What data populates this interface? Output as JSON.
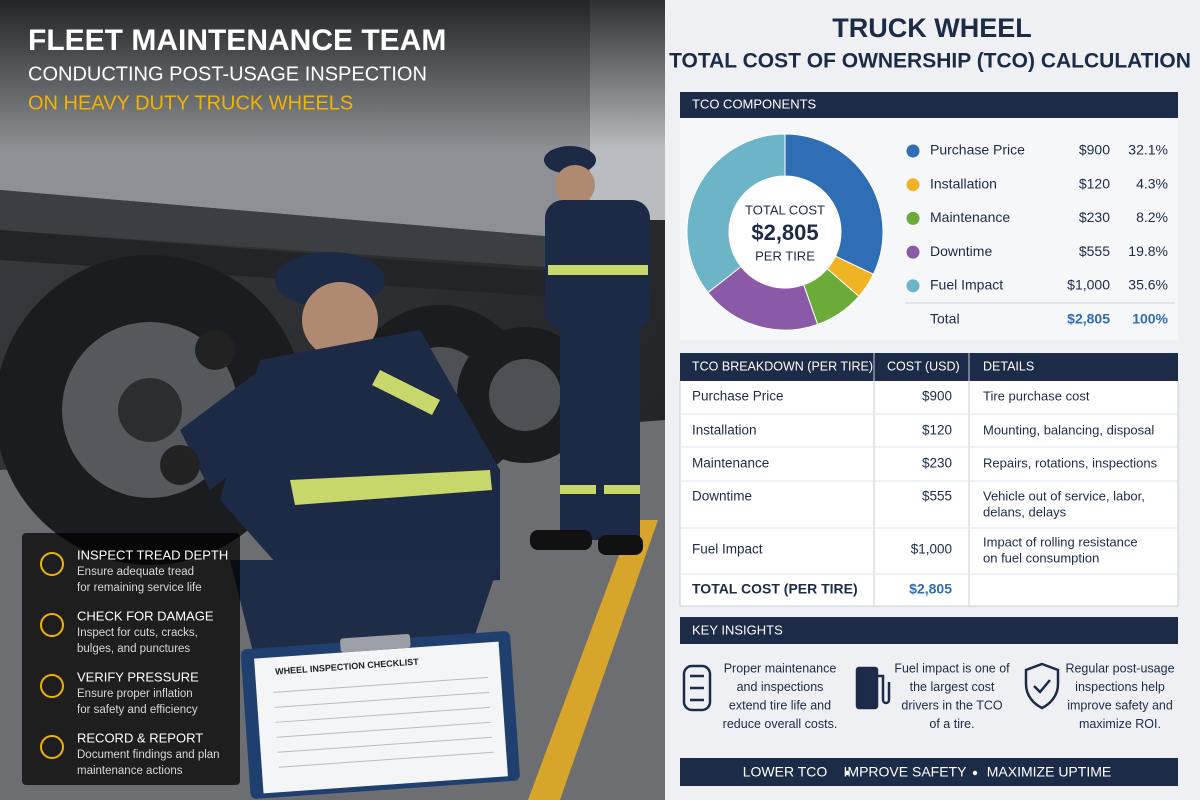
{
  "header": {
    "title": "FLEET MAINTENANCE TEAM",
    "subtitle": "CONDUCTING POST-USAGE INSPECTION",
    "subtitle2": "ON HEAVY DUTY TRUCK WHEELS"
  },
  "checklist_sheet": "WHEEL INSPECTION CHECKLIST",
  "inspection_steps": [
    {
      "title": "INSPECT TREAD DEPTH",
      "text": [
        "Ensure adequate tread",
        "for remaining service life"
      ]
    },
    {
      "title": "CHECK FOR DAMAGE",
      "text": [
        "Inspect for cuts, cracks,",
        "bulges, and punctures"
      ]
    },
    {
      "title": "VERIFY PRESSURE",
      "text": [
        "Ensure proper inflation",
        "for safety and efficiency"
      ]
    },
    {
      "title": "RECORD & REPORT",
      "text": [
        "Document findings and plan",
        "maintenance actions"
      ]
    }
  ],
  "panel": {
    "title": "TRUCK WHEEL",
    "subtitle": "TOTAL COST OF OWNERSHIP (TCO) CALCULATION"
  },
  "chart_data": {
    "type": "donut",
    "title": "TCO COMPONENTS",
    "categories": [
      "Purchase Price",
      "Installation",
      "Maintenance",
      "Downtime",
      "Fuel Impact"
    ],
    "values": [
      32.1,
      4.3,
      8.2,
      19.8,
      35.6
    ],
    "value_labels": [
      "32.1%",
      "4.3%",
      "8.2%",
      "19.8%",
      "35.6%"
    ],
    "colors": [
      "#2f6db5",
      "#f0b323",
      "#6aab3a",
      "#8a5aa8",
      "#6cb4c8"
    ],
    "costs": [
      "$900",
      "$120",
      "$230",
      "$555",
      "$1,000"
    ],
    "center_label": [
      "TOTAL COST",
      "$2,805",
      "PER TIRE"
    ],
    "total": {
      "label": "Total",
      "cost": "$2,805",
      "share": "100%"
    }
  },
  "breakdown": {
    "columns": [
      "TCO BREAKDOWN (PER TIRE)",
      "COST (USD)",
      "DETAILS"
    ],
    "rows": [
      [
        "Purchase Price",
        "$900",
        [
          "Tire purchase cost"
        ]
      ],
      [
        "Installation",
        "$120",
        [
          "Mounting, balancing, disposal"
        ]
      ],
      [
        "Maintenance",
        "$230",
        [
          "Repairs, rotations, inspections"
        ]
      ],
      [
        "Downtime",
        "$555",
        [
          "Vehicle out of service, labor,",
          "delans, delays"
        ]
      ],
      [
        "Fuel Impact",
        "$1,000",
        [
          "Impact of rolling resistance",
          "on fuel consumption"
        ]
      ]
    ],
    "total": [
      "TOTAL COST (PER TIRE)",
      "$2,805"
    ]
  },
  "insights": {
    "title": "KEY INSIGHTS",
    "items": [
      [
        "Proper maintenance",
        "and inspections",
        "extend tire life and",
        "reduce overall costs."
      ],
      [
        "Fuel impact is one of",
        "the largest cost",
        "drivers in the TCO",
        "of a tire."
      ],
      [
        "Regular post-usage",
        "inspections help",
        "improve safety and",
        "maximize ROI."
      ]
    ]
  },
  "footer": [
    "LOWER TCO",
    "IMPROVE SAFETY",
    "MAXIMIZE UPTIME"
  ]
}
